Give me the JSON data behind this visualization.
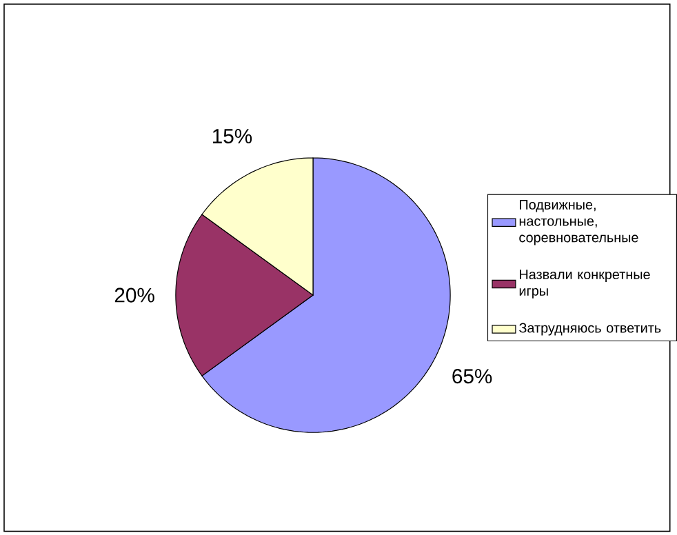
{
  "chart_data": {
    "type": "pie",
    "categories": [
      "Подвижные, настольные, соревновательные",
      "Назвали конкретные игры",
      "Затрудняюсь ответить"
    ],
    "values": [
      65,
      20,
      15
    ],
    "colors": [
      "#9999ff",
      "#993366",
      "#ffffcc"
    ],
    "value_labels": [
      "65%",
      "20%",
      "15%"
    ],
    "legend": "right"
  }
}
